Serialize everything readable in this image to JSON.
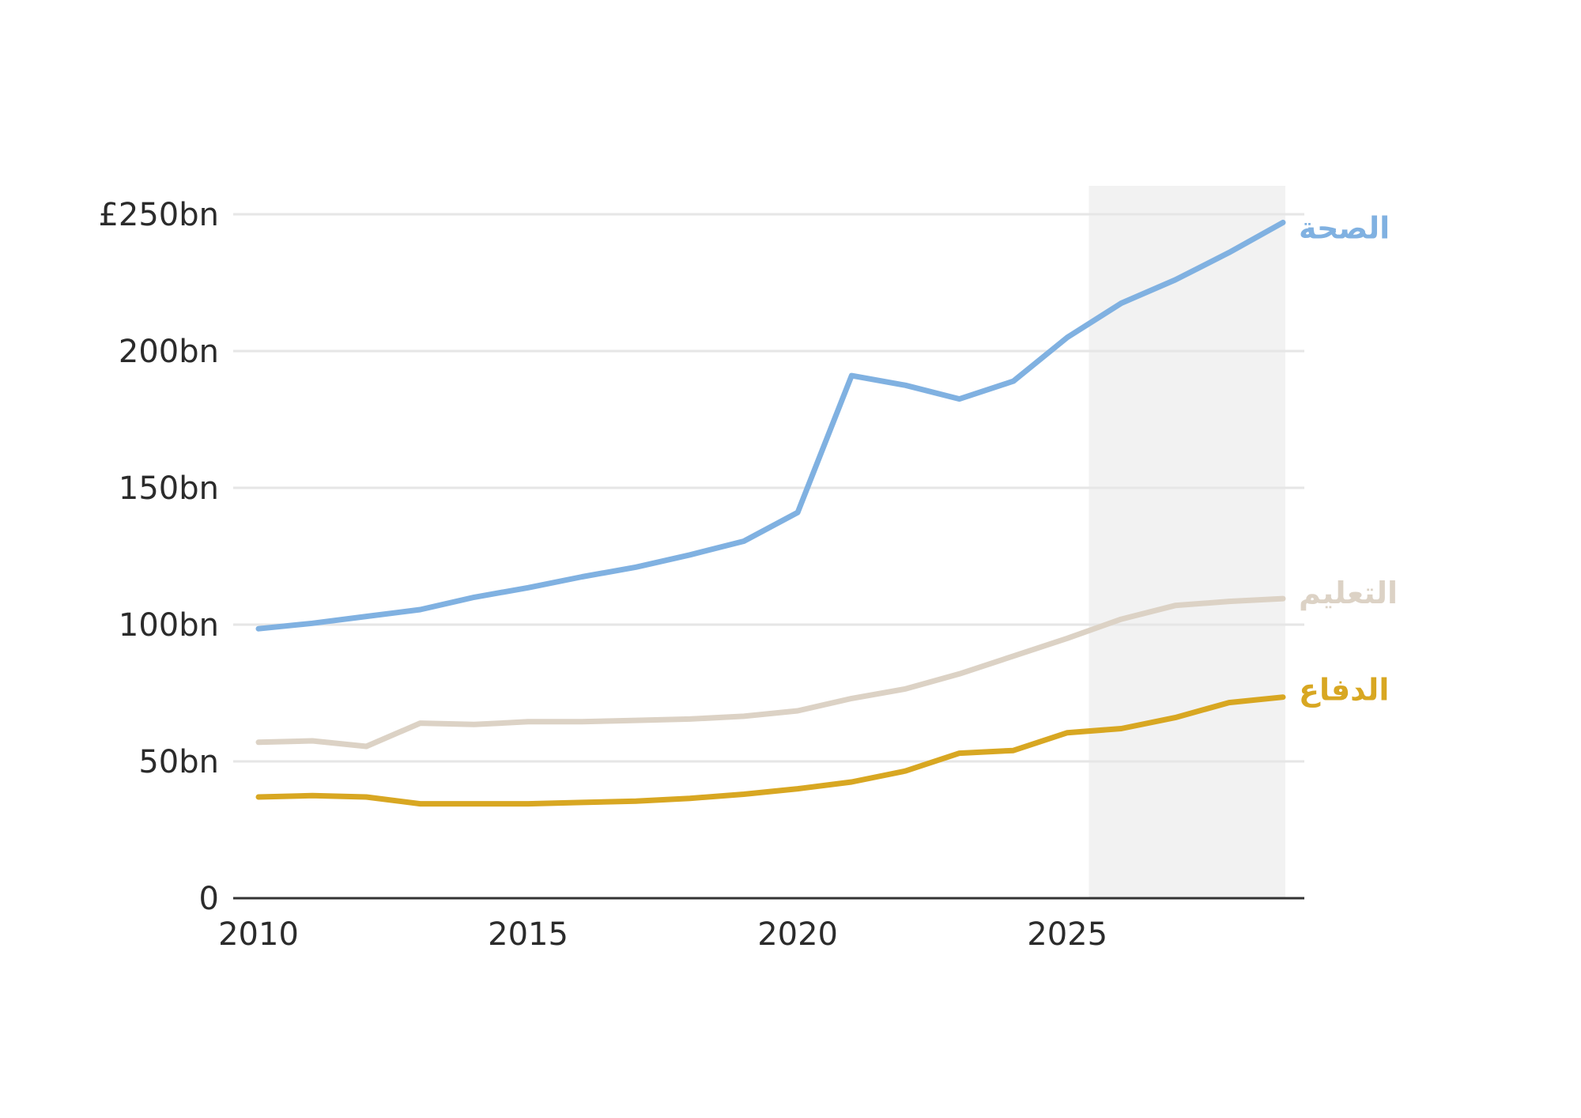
{
  "chart_data": {
    "type": "line",
    "x": [
      2010,
      2011,
      2012,
      2013,
      2014,
      2015,
      2016,
      2017,
      2018,
      2019,
      2020,
      2021,
      2022,
      2023,
      2024,
      2025,
      2026,
      2027,
      2028,
      2029
    ],
    "series": [
      {
        "name": "الصحة",
        "color": "#80b1e1",
        "values": [
          98.5,
          100.5,
          103,
          105.5,
          110,
          113.5,
          117.5,
          121,
          125.5,
          130.5,
          141,
          191,
          187.5,
          182.5,
          189,
          205,
          217.5,
          226,
          236,
          247
        ]
      },
      {
        "name": "التعليم",
        "color": "#dcd2c5",
        "values": [
          57,
          57.5,
          55.5,
          64,
          63.5,
          64.5,
          64.5,
          65,
          65.5,
          66.5,
          68.5,
          73,
          76.5,
          82,
          88.5,
          95,
          102,
          107,
          108.5,
          109.5
        ]
      },
      {
        "name": "الدفاع",
        "color": "#d8a722",
        "values": [
          37,
          37.5,
          37,
          34.5,
          34.5,
          34.5,
          35,
          35.5,
          36.5,
          38,
          40,
          42.5,
          46.5,
          53,
          54,
          60.5,
          62,
          66,
          71.5,
          73.5
        ]
      }
    ],
    "ylim": [
      0,
      250
    ],
    "yticks": [
      0,
      50,
      100,
      150,
      200,
      250
    ],
    "ytick_labels": [
      "0",
      "50bn",
      "100bn",
      "150bn",
      "200bn",
      "£250bn"
    ],
    "xlim": [
      2010,
      2029
    ],
    "xticks": [
      2010,
      2015,
      2020,
      2025
    ],
    "xtick_labels": [
      "2010",
      "2015",
      "2020",
      "2025"
    ],
    "shaded_region": [
      2025.4,
      2029
    ],
    "shade_color": "#f2f2f2",
    "grid": true,
    "grid_color": "#e6e6e6",
    "title": "",
    "xlabel": "",
    "ylabel": ""
  }
}
